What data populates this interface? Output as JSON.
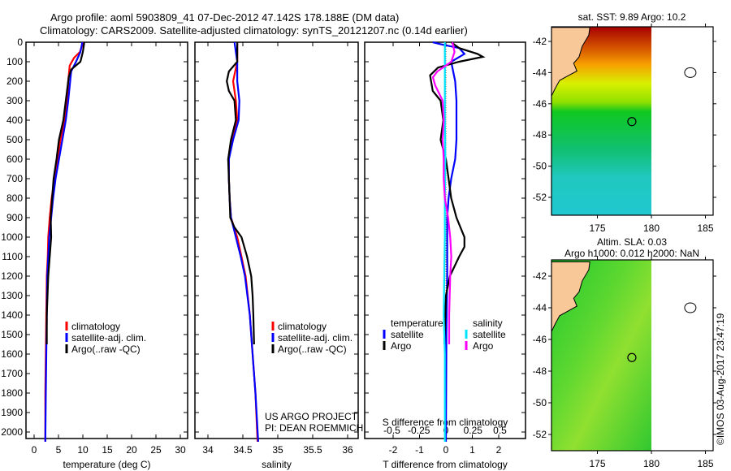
{
  "title": {
    "line1": "Argo profile: aoml 5903809_41 07-Dec-2012 47.142S 178.188E (DM data)",
    "line2": "Climatology: CARS2009. Satellite-adjusted climatology: synTS_20121207.nc (0.14d earlier)"
  },
  "credit": {
    "project": "US ARGO PROJECT",
    "pi": "PI: DEAN ROEMMICH",
    "stamp": "©IMOS 03-Aug-2017 23:47:19"
  },
  "colors": {
    "climatology": "#ff0000",
    "satellite": "#0000ff",
    "argo": "#000000",
    "sal_satellite": "#00e5ff",
    "sal_argo": "#ff00ff",
    "land": "#f9c898"
  },
  "chart_data": [
    {
      "type": "line",
      "id": "temperature",
      "xlabel": "temperature (deg C)",
      "ylabel": "",
      "xlim": [
        -1.7,
        31.5
      ],
      "ylim": [
        2050,
        0
      ],
      "xticks": [
        0,
        5,
        10,
        15,
        20,
        25,
        30
      ],
      "yticks": [
        0,
        100,
        200,
        300,
        400,
        500,
        600,
        700,
        800,
        900,
        1000,
        1100,
        1200,
        1300,
        1400,
        1500,
        1600,
        1700,
        1800,
        1900,
        2000
      ],
      "legend": [
        "climatology",
        "satellite-adj. clim.",
        "Argo(..raw -QC)"
      ],
      "series": [
        {
          "name": "climatology",
          "color": "#ff0000",
          "depth": [
            0,
            50,
            80,
            120,
            200,
            300,
            400,
            500,
            600,
            700,
            800,
            900,
            1000,
            1100,
            1200,
            1400,
            1600,
            1800,
            2050
          ],
          "values": [
            10.1,
            9.4,
            8.2,
            7.3,
            7.0,
            6.8,
            6.2,
            5.4,
            4.8,
            4.2,
            3.6,
            3.2,
            2.9,
            2.8,
            2.6,
            2.5,
            2.4,
            2.3,
            2.3
          ]
        },
        {
          "name": "satellite-adj. clim.",
          "color": "#0000ff",
          "depth": [
            0,
            50,
            100,
            150,
            200,
            300,
            400,
            500,
            600,
            700,
            800,
            900,
            1000,
            1100,
            1200,
            1400,
            1600,
            1800,
            2050
          ],
          "values": [
            9.9,
            9.5,
            8.6,
            7.6,
            7.4,
            7.0,
            6.5,
            5.8,
            5.1,
            4.4,
            3.9,
            3.5,
            3.1,
            2.9,
            2.7,
            2.6,
            2.5,
            2.4,
            2.3
          ]
        },
        {
          "name": "Argo(..raw -QC)",
          "color": "#000000",
          "depth": [
            0,
            50,
            100,
            140,
            180,
            300,
            400,
            500,
            600,
            700,
            800,
            900,
            1000,
            1100,
            1200,
            1400,
            1550
          ],
          "values": [
            10.3,
            10.0,
            9.5,
            7.6,
            7.1,
            6.5,
            6.0,
            5.1,
            4.6,
            4.0,
            3.7,
            3.4,
            3.5,
            3.2,
            2.9,
            2.6,
            2.6
          ]
        }
      ]
    },
    {
      "type": "line",
      "id": "salinity",
      "xlabel": "salinity",
      "xlim": [
        33.81,
        36.15
      ],
      "ylim": [
        2050,
        0
      ],
      "xticks": [
        34,
        34.5,
        35,
        35.5,
        36
      ],
      "legend": [
        "climatology",
        "satellite-adj. clim.",
        "Argo(..raw -QC)"
      ],
      "series": [
        {
          "name": "climatology",
          "color": "#ff0000",
          "depth": [
            0,
            100,
            200,
            300,
            400,
            500,
            600,
            700,
            800,
            900,
            1000,
            1100,
            1200,
            1400,
            1600,
            1800,
            2050
          ],
          "values": [
            34.42,
            34.42,
            34.36,
            34.4,
            34.42,
            34.34,
            34.3,
            34.3,
            34.31,
            34.33,
            34.42,
            34.48,
            34.54,
            34.6,
            34.64,
            34.68,
            34.71
          ]
        },
        {
          "name": "satellite-adj. clim.",
          "color": "#0000ff",
          "depth": [
            0,
            50,
            100,
            200,
            300,
            400,
            500,
            600,
            700,
            800,
            900,
            1000,
            1100,
            1200,
            1400,
            1600,
            1800,
            2050
          ],
          "values": [
            34.38,
            34.4,
            34.42,
            34.42,
            34.45,
            34.44,
            34.36,
            34.3,
            34.3,
            34.31,
            34.33,
            34.4,
            34.47,
            34.53,
            34.6,
            34.64,
            34.68,
            34.72
          ]
        },
        {
          "name": "Argo(..raw -QC)",
          "color": "#000000",
          "depth": [
            0,
            100,
            150,
            200,
            250,
            300,
            400,
            500,
            600,
            700,
            800,
            900,
            950,
            1000,
            1100,
            1200,
            1300,
            1400,
            1550
          ],
          "values": [
            34.42,
            34.42,
            34.3,
            34.27,
            34.3,
            34.38,
            34.4,
            34.33,
            34.29,
            34.3,
            34.31,
            34.32,
            34.38,
            34.48,
            34.56,
            34.62,
            34.64,
            34.65,
            34.66
          ]
        }
      ]
    },
    {
      "type": "line",
      "id": "difference",
      "xlabel": "T difference from climatology",
      "x2label": "S difference from climatology",
      "xlim": [
        -3.1,
        3.0
      ],
      "ylim": [
        2050,
        0
      ],
      "xticks": [
        -2,
        -1,
        0,
        1,
        2
      ],
      "x2ticks": [
        -0.5,
        -0.25,
        0,
        0.25,
        0.5
      ],
      "legend": {
        "temperature": "temperature",
        "salinity": "salinity",
        "satellite": "satellite",
        "argo": "Argo"
      },
      "series": [
        {
          "name": "temperature satellite",
          "axis": "T",
          "color": "#0000ff",
          "depth": [
            0,
            10,
            30,
            60,
            100,
            200,
            300,
            400,
            500,
            600,
            700,
            800,
            900,
            1000,
            1100,
            1200,
            1500,
            2050
          ],
          "values": [
            -0.5,
            -0.2,
            0.5,
            0.7,
            0.2,
            0.35,
            0.4,
            0.4,
            0.4,
            0.35,
            0.2,
            0.1,
            0.05,
            0.05,
            0.05,
            0.05,
            0.02,
            0.0
          ]
        },
        {
          "name": "temperature Argo",
          "axis": "T",
          "color": "#000000",
          "depth": [
            0,
            30,
            60,
            75,
            100,
            130,
            170,
            250,
            300,
            400,
            500,
            600,
            700,
            800,
            900,
            1000,
            1050,
            1100,
            1200,
            1300,
            1500,
            1550
          ],
          "values": [
            0.2,
            0.5,
            1.2,
            1.4,
            0.5,
            -0.3,
            -0.6,
            -0.5,
            -0.2,
            -0.1,
            -0.2,
            0.0,
            0.1,
            0.2,
            0.4,
            0.7,
            0.7,
            0.5,
            0.15,
            0.0,
            -0.05,
            -0.05
          ]
        },
        {
          "name": "salinity satellite",
          "axis": "S",
          "color": "#00e5ff",
          "depth": [
            0,
            200,
            400,
            600,
            800,
            1000,
            1200,
            1400,
            1600,
            2050
          ],
          "values": [
            -0.01,
            -0.01,
            -0.01,
            -0.005,
            -0.01,
            -0.01,
            -0.015,
            -0.02,
            -0.01,
            -0.01
          ]
        },
        {
          "name": "salinity Argo",
          "axis": "S",
          "color": "#ff00ff",
          "depth": [
            0,
            50,
            100,
            150,
            180,
            220,
            300,
            400,
            500,
            600,
            700,
            800,
            900,
            1000,
            1100,
            1200,
            1400,
            1550
          ],
          "values": [
            0.06,
            0.08,
            0.05,
            -0.08,
            -0.12,
            -0.1,
            -0.03,
            -0.02,
            -0.03,
            -0.02,
            -0.02,
            -0.01,
            0.02,
            0.04,
            0.05,
            0.04,
            0.03,
            0.03
          ]
        }
      ]
    }
  ],
  "maps": [
    {
      "id": "sst",
      "title": "sat. SST: 9.89 Argo: 10.2",
      "xticks": [
        175,
        180,
        185
      ],
      "yticks": [
        -42,
        -44,
        -46,
        -48,
        -50,
        -52
      ],
      "lonlim": [
        170.75,
        185.7
      ],
      "latlim": [
        -53.2,
        -41.1
      ],
      "argo_lon": 178.188,
      "argo_lat": -47.142
    },
    {
      "id": "sla",
      "title1": "Altim. SLA: 0.03",
      "title2": "Argo h1000: 0.012 h2000: NaN",
      "xticks": [
        175,
        180,
        185
      ],
      "yticks": [
        -42,
        -44,
        -46,
        -48,
        -50,
        -52
      ],
      "lonlim": [
        170.75,
        185.7
      ],
      "latlim": [
        -53.2,
        -41.3
      ],
      "argo_lon": 178.188,
      "argo_lat": -47.142
    }
  ]
}
